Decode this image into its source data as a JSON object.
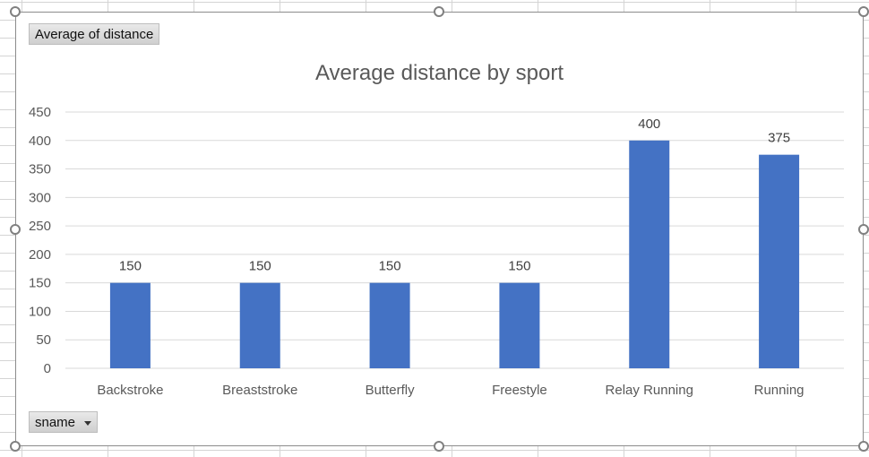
{
  "value_field_button": {
    "label": "Average of distance"
  },
  "axis_field_button": {
    "label": "sname"
  },
  "colors": {
    "bar": "#4472C4",
    "gridline": "#d9d9d9",
    "text": "#595959"
  },
  "chart_data": {
    "type": "bar",
    "title": "Average distance by sport",
    "categories": [
      "Backstroke",
      "Breaststroke",
      "Butterfly",
      "Freestyle",
      "Relay Running",
      "Running"
    ],
    "values": [
      150,
      150,
      150,
      150,
      400,
      375
    ],
    "data_labels": [
      "150",
      "150",
      "150",
      "150",
      "400",
      "375"
    ],
    "ylim": [
      0,
      450
    ],
    "yticks": [
      "0",
      "50",
      "100",
      "150",
      "200",
      "250",
      "300",
      "350",
      "400",
      "450"
    ],
    "grid": true,
    "legend": "none"
  }
}
